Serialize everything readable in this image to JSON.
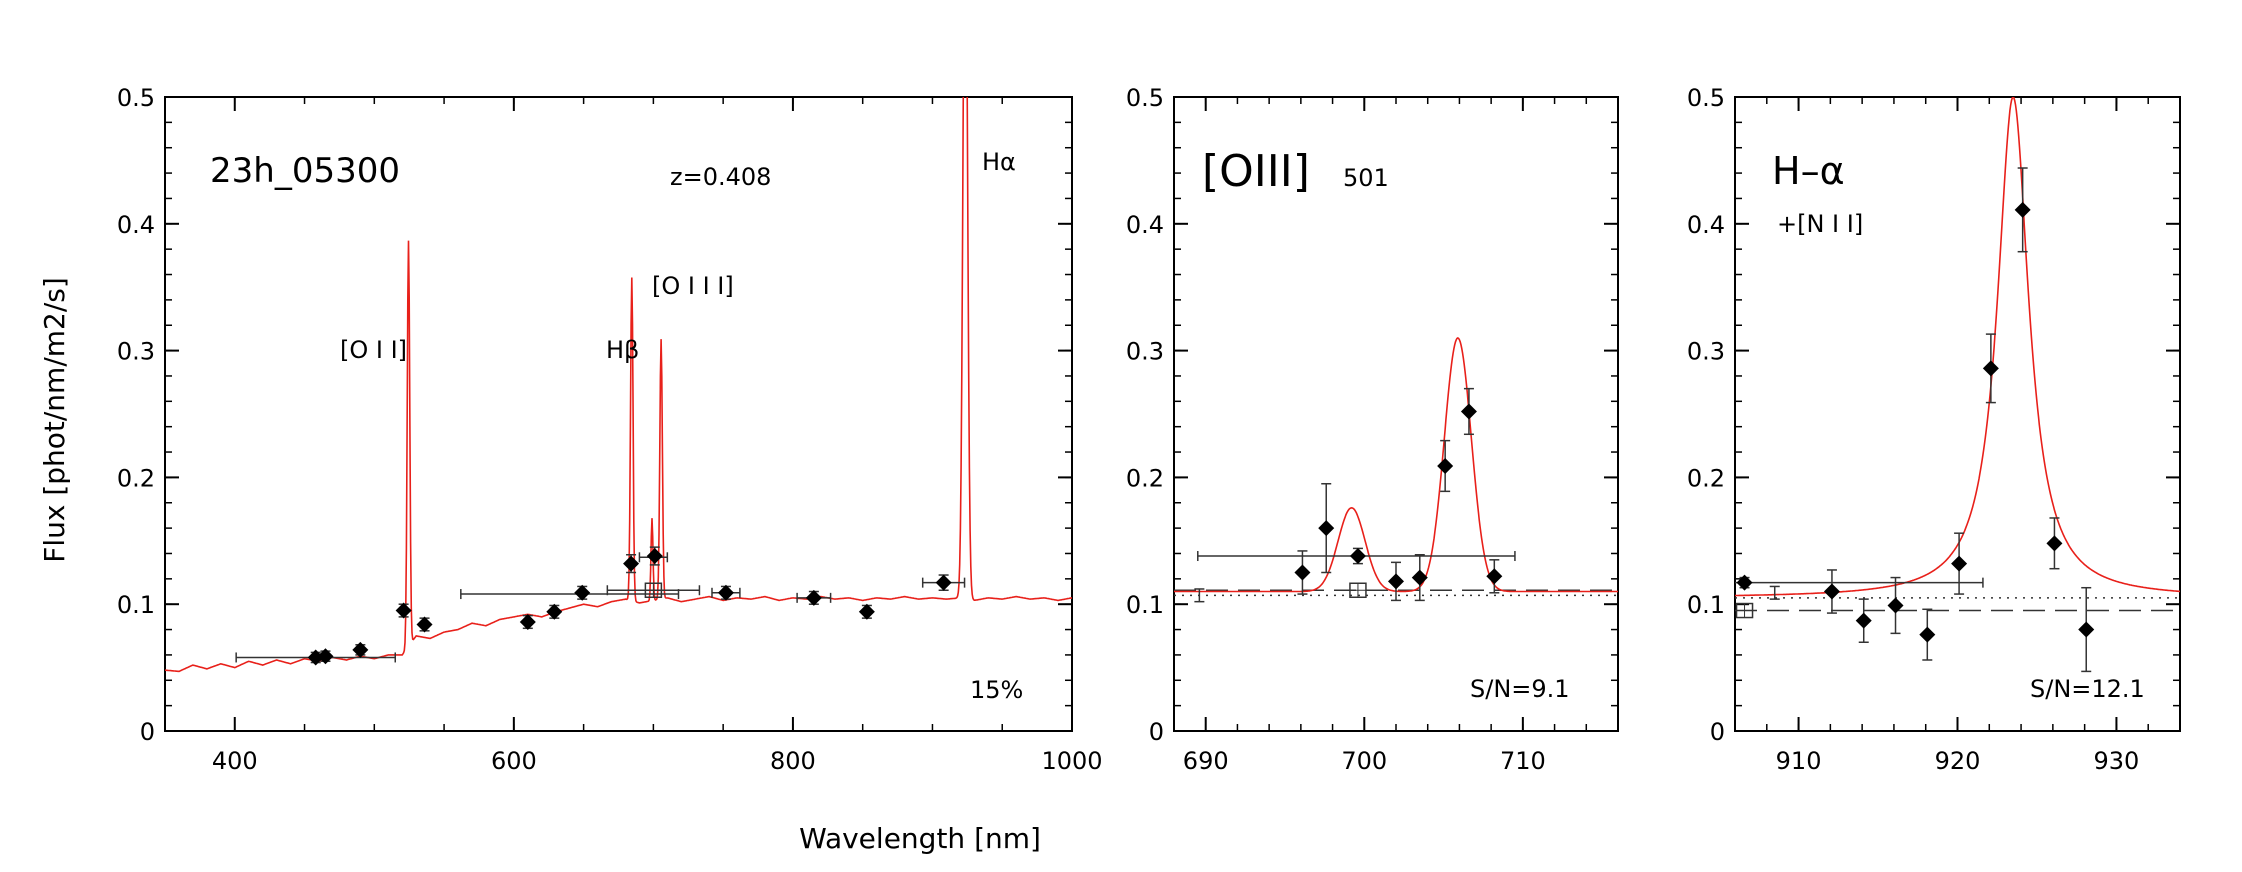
{
  "figure": {
    "ylabel": "Flux  [phot/nm/m2/s]",
    "xlabel": "Wavelength  [nm]"
  },
  "chart_data": [
    {
      "type": "line",
      "panel": "full-spectrum",
      "xlim": [
        350,
        1000
      ],
      "ylim": [
        0,
        0.5
      ],
      "xticks": [
        400,
        600,
        800,
        1000
      ],
      "yticks": [
        0,
        0.1,
        0.2,
        0.3,
        0.4,
        0.5
      ],
      "ytick_labels": [
        "0",
        "0.1",
        "0.2",
        "0.3",
        "0.4",
        "0.5"
      ],
      "title": "23h_05300",
      "redshift_label": "z=0.408",
      "footer_label": "15%",
      "line_labels": [
        {
          "text": "[O I I]",
          "x": 475,
          "y": 0.3
        },
        {
          "text": "Hβ",
          "x": 670,
          "y": 0.3
        },
        {
          "text": "[O I I I]",
          "x": 697,
          "y": 0.35
        },
        {
          "text": "Hα",
          "x": 920,
          "y": 0.45
        }
      ],
      "model_continuum": [
        [
          350,
          0.048
        ],
        [
          360,
          0.047
        ],
        [
          370,
          0.052
        ],
        [
          380,
          0.049
        ],
        [
          390,
          0.053
        ],
        [
          400,
          0.05
        ],
        [
          410,
          0.055
        ],
        [
          420,
          0.052
        ],
        [
          430,
          0.056
        ],
        [
          440,
          0.053
        ],
        [
          450,
          0.057
        ],
        [
          460,
          0.055
        ],
        [
          470,
          0.058
        ],
        [
          480,
          0.056
        ],
        [
          490,
          0.059
        ],
        [
          500,
          0.057
        ],
        [
          510,
          0.06
        ],
        [
          520,
          0.06
        ],
        [
          530,
          0.075
        ],
        [
          540,
          0.073
        ],
        [
          550,
          0.078
        ],
        [
          560,
          0.08
        ],
        [
          570,
          0.085
        ],
        [
          580,
          0.083
        ],
        [
          590,
          0.088
        ],
        [
          600,
          0.09
        ],
        [
          610,
          0.092
        ],
        [
          620,
          0.09
        ],
        [
          630,
          0.094
        ],
        [
          640,
          0.097
        ],
        [
          650,
          0.1
        ],
        [
          660,
          0.098
        ],
        [
          670,
          0.102
        ],
        [
          680,
          0.104
        ],
        [
          690,
          0.101
        ],
        [
          700,
          0.103
        ],
        [
          710,
          0.105
        ],
        [
          720,
          0.102
        ],
        [
          730,
          0.104
        ],
        [
          740,
          0.106
        ],
        [
          750,
          0.103
        ],
        [
          760,
          0.105
        ],
        [
          770,
          0.104
        ],
        [
          780,
          0.106
        ],
        [
          790,
          0.103
        ],
        [
          800,
          0.105
        ],
        [
          810,
          0.104
        ],
        [
          820,
          0.106
        ],
        [
          830,
          0.104
        ],
        [
          840,
          0.105
        ],
        [
          850,
          0.103
        ],
        [
          860,
          0.105
        ],
        [
          870,
          0.104
        ],
        [
          880,
          0.106
        ],
        [
          890,
          0.104
        ],
        [
          900,
          0.105
        ],
        [
          910,
          0.104
        ],
        [
          920,
          0.105
        ],
        [
          930,
          0.103
        ],
        [
          940,
          0.105
        ],
        [
          950,
          0.104
        ],
        [
          960,
          0.106
        ],
        [
          970,
          0.104
        ],
        [
          980,
          0.105
        ],
        [
          990,
          0.103
        ],
        [
          1000,
          0.105
        ]
      ],
      "model_lines": [
        {
          "center": 524.5,
          "sigma": 0.9,
          "amp": 0.32
        },
        {
          "center": 684.5,
          "sigma": 0.9,
          "amp": 0.255
        },
        {
          "center": 699,
          "sigma": 0.7,
          "amp": 0.065
        },
        {
          "center": 705.5,
          "sigma": 0.9,
          "amp": 0.205
        },
        {
          "center": 923.5,
          "sigma": 1.6,
          "amp": 0.6
        }
      ],
      "points": [
        {
          "x": 458,
          "y": 0.058,
          "xerr": 0,
          "yerr": 0.004
        },
        {
          "x": 465,
          "y": 0.059,
          "xerr": 0,
          "yerr": 0.004
        },
        {
          "x": 490,
          "y": 0.064,
          "xerr": 0,
          "yerr": 0.004
        },
        {
          "x": 521,
          "y": 0.095,
          "xerr": 0,
          "yerr": 0.005
        },
        {
          "x": 536,
          "y": 0.084,
          "xerr": 0,
          "yerr": 0.005
        },
        {
          "x": 610,
          "y": 0.086,
          "xerr": 0,
          "yerr": 0.005
        },
        {
          "x": 629,
          "y": 0.094,
          "xerr": 0,
          "yerr": 0.005
        },
        {
          "x": 649,
          "y": 0.109,
          "xerr": 0,
          "yerr": 0.005
        },
        {
          "x": 684,
          "y": 0.132,
          "xerr": 0,
          "yerr": 0.007
        },
        {
          "x": 701,
          "y": 0.138,
          "xerr": 0,
          "yerr": 0.007
        },
        {
          "x": 752,
          "y": 0.109,
          "xerr": 0,
          "yerr": 0.005
        },
        {
          "x": 815,
          "y": 0.105,
          "xerr": 0,
          "yerr": 0.005
        },
        {
          "x": 853,
          "y": 0.094,
          "xerr": 0,
          "yerr": 0.005
        },
        {
          "x": 908,
          "y": 0.117,
          "xerr": 0,
          "yerr": 0.006
        }
      ],
      "broadband": [
        {
          "x": 458,
          "y": 0.058,
          "xerr": 57
        },
        {
          "x": 640,
          "y": 0.108,
          "xerr": 78
        },
        {
          "x": 700,
          "y": 0.137,
          "xerr": 10
        },
        {
          "x": 700,
          "y": 0.111,
          "xerr": 33
        },
        {
          "x": 752,
          "y": 0.109,
          "xerr": 10
        },
        {
          "x": 815,
          "y": 0.105,
          "xerr": 12
        },
        {
          "x": 908,
          "y": 0.117,
          "xerr": 15
        }
      ],
      "open_points": [
        {
          "x": 700,
          "y": 0.111
        }
      ]
    },
    {
      "type": "line",
      "panel": "oiii",
      "xlim": [
        688,
        716
      ],
      "ylim": [
        0,
        0.5
      ],
      "xticks": [
        690,
        700,
        710
      ],
      "yticks": [
        0,
        0.1,
        0.2,
        0.3,
        0.4,
        0.5
      ],
      "ytick_labels": [
        "0",
        "0.1",
        "0.2",
        "0.3",
        "0.4",
        "0.5"
      ],
      "title": "[OIII]",
      "title_suffix": "501",
      "footer_label": "S/N=9.1",
      "continuum": 0.11,
      "dashed_level": 0.111,
      "dotted_level": 0.107,
      "model_lines": [
        {
          "center": 699.2,
          "sigma": 0.85,
          "amp": 0.066
        },
        {
          "center": 705.9,
          "sigma": 0.85,
          "amp": 0.2
        }
      ],
      "points": [
        {
          "x": 696.1,
          "y": 0.125,
          "yerr": 0.017
        },
        {
          "x": 697.6,
          "y": 0.16,
          "yerr": 0.035
        },
        {
          "x": 699.6,
          "y": 0.138,
          "yerr": 0.006
        },
        {
          "x": 702,
          "y": 0.118,
          "yerr": 0.015
        },
        {
          "x": 703.5,
          "y": 0.121,
          "yerr": 0.018
        },
        {
          "x": 705.1,
          "y": 0.209,
          "yerr": 0.02
        },
        {
          "x": 706.6,
          "y": 0.252,
          "yerr": 0.018
        },
        {
          "x": 708.2,
          "y": 0.122,
          "yerr": 0.013
        }
      ],
      "broadband": [
        {
          "x": 699.5,
          "y": 0.138,
          "xerr": 10
        }
      ],
      "open_points": [
        {
          "x": 699.6,
          "y": 0.111
        }
      ],
      "small_errorbar": {
        "x": 689.6,
        "y": 0.107,
        "yerr": 0.005
      }
    },
    {
      "type": "line",
      "panel": "halpha",
      "xlim": [
        906,
        934
      ],
      "ylim": [
        0,
        0.5
      ],
      "xticks": [
        910,
        920,
        930
      ],
      "yticks": [
        0,
        0.1,
        0.2,
        0.3,
        0.4,
        0.5
      ],
      "ytick_labels": [
        "0",
        "0.1",
        "0.2",
        "0.3",
        "0.4",
        "0.5"
      ],
      "title": "H–α",
      "subtitle": "+[N I I]",
      "footer_label": "S/N=12.1",
      "continuum": 0.105,
      "dashed_level": 0.095,
      "dotted_level": 0.105,
      "model_lines": [
        {
          "center": 923.5,
          "gamma": 1.2,
          "amp": 0.395
        }
      ],
      "points": [
        {
          "x": 906.6,
          "y": 0.117,
          "yerr": 0.004
        },
        {
          "x": 912.1,
          "y": 0.11,
          "yerr": 0.017
        },
        {
          "x": 914.1,
          "y": 0.087,
          "yerr": 0.017
        },
        {
          "x": 916.1,
          "y": 0.099,
          "yerr": 0.022
        },
        {
          "x": 918.1,
          "y": 0.076,
          "yerr": 0.02
        },
        {
          "x": 920.1,
          "y": 0.132,
          "yerr": 0.024
        },
        {
          "x": 922.1,
          "y": 0.286,
          "yerr": 0.027
        },
        {
          "x": 924.1,
          "y": 0.411,
          "yerr": 0.033
        },
        {
          "x": 926.1,
          "y": 0.148,
          "yerr": 0.02
        },
        {
          "x": 928.1,
          "y": 0.08,
          "yerr": 0.033
        }
      ],
      "broadband": [
        {
          "x": 906.6,
          "y": 0.117,
          "xerr": 15
        }
      ],
      "open_points": [
        {
          "x": 906.6,
          "y": 0.095
        }
      ],
      "small_errorbar": {
        "x": 908.5,
        "y": 0.109,
        "yerr": 0.005
      }
    }
  ]
}
